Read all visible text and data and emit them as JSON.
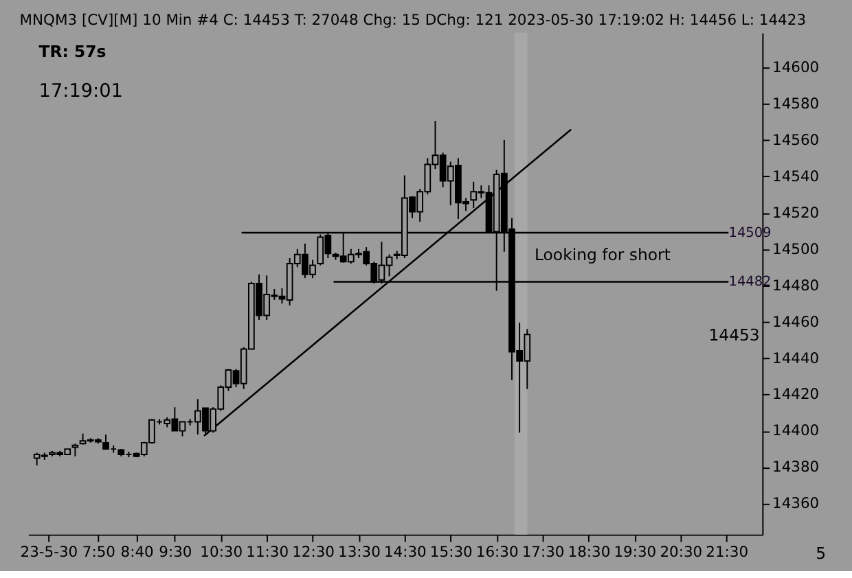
{
  "chart_data": {
    "type": "candlestick",
    "title": "MNQM3 [CV][M]  10 Min  #4  C: 14453  T: 27048  Chg: 15  DChg: 121  2023-05-30 17:19:02  H: 14456  L: 14423",
    "x": [
      6.5,
      6.6667,
      6.8333,
      7.0,
      7.1667,
      7.3333,
      7.5,
      7.6667,
      7.8333,
      8.0,
      8.1667,
      8.3333,
      8.5,
      8.6667,
      8.8333,
      9.0,
      9.1667,
      9.3333,
      9.5,
      9.6667,
      9.8333,
      10.0,
      10.1667,
      10.3333,
      10.5,
      10.6667,
      10.8333,
      11.0,
      11.1667,
      11.3333,
      11.5,
      11.6667,
      11.8333,
      12.0,
      12.1667,
      12.3333,
      12.5,
      12.6667,
      12.8333,
      13.0,
      13.1667,
      13.3333,
      13.5,
      13.6667,
      13.8333,
      14.0,
      14.1667,
      14.3333,
      14.5,
      14.6667,
      14.8333,
      15.0,
      15.1667,
      15.3333,
      15.5,
      15.6667,
      15.8333,
      16.0,
      16.1667,
      16.3333,
      16.5,
      16.6667,
      16.8333,
      17.0,
      17.1667
    ],
    "ohlc": [
      [
        14385,
        14388,
        14381,
        14387
      ],
      [
        14386,
        14388,
        14384,
        14386.5
      ],
      [
        14387,
        14389,
        14386,
        14388
      ],
      [
        14388,
        14389,
        14386,
        14387
      ],
      [
        14387,
        14390,
        14387,
        14390
      ],
      [
        14391,
        14393,
        14386,
        14392
      ],
      [
        14393,
        14398.5,
        14392.5,
        14394.5
      ],
      [
        14394.5,
        14396,
        14393.5,
        14395
      ],
      [
        14395,
        14396,
        14393,
        14394
      ],
      [
        14393.5,
        14398,
        14390,
        14390
      ],
      [
        14390,
        14392,
        14388,
        14390
      ],
      [
        14389.5,
        14390,
        14386,
        14387
      ],
      [
        14387,
        14388.5,
        14385.5,
        14387
      ],
      [
        14387.5,
        14388,
        14385.5,
        14386
      ],
      [
        14387,
        14394,
        14386,
        14393.5
      ],
      [
        14393.5,
        14406.5,
        14393,
        14406
      ],
      [
        14405,
        14406.5,
        14403.5,
        14405
      ],
      [
        14404,
        14407.5,
        14402,
        14406
      ],
      [
        14406.5,
        14413,
        14400,
        14400
      ],
      [
        14400,
        14405,
        14397,
        14405
      ],
      [
        14405,
        14406.5,
        14403,
        14405
      ],
      [
        14405,
        14417.5,
        14398,
        14411
      ],
      [
        14412.5,
        14412.5,
        14398.5,
        14400
      ],
      [
        14400,
        14413,
        14399,
        14412
      ],
      [
        14412,
        14425,
        14411,
        14424
      ],
      [
        14424,
        14434,
        14422,
        14433.5
      ],
      [
        14433,
        14434,
        14424,
        14426
      ],
      [
        14426,
        14446,
        14423,
        14445
      ],
      [
        14445,
        14482,
        14445,
        14481
      ],
      [
        14481,
        14486,
        14461,
        14463.5
      ],
      [
        14463.5,
        14485.5,
        14461,
        14475
      ],
      [
        14474.5,
        14478,
        14472,
        14474
      ],
      [
        14474,
        14478.5,
        14470,
        14472.5
      ],
      [
        14472,
        14495,
        14469,
        14492
      ],
      [
        14492,
        14500,
        14490,
        14497
      ],
      [
        14497,
        14503,
        14484,
        14486
      ],
      [
        14486,
        14494,
        14484,
        14491
      ],
      [
        14492,
        14508,
        14491,
        14506.5
      ],
      [
        14507.5,
        14509,
        14495,
        14497.5
      ],
      [
        14497,
        14498,
        14494,
        14496
      ],
      [
        14496,
        14509,
        14492.5,
        14493
      ],
      [
        14493,
        14500,
        14492,
        14497
      ],
      [
        14497.5,
        14500,
        14495,
        14497
      ],
      [
        14498.5,
        14501,
        14491,
        14492
      ],
      [
        14492,
        14493,
        14481,
        14482
      ],
      [
        14483,
        14504,
        14481,
        14491
      ],
      [
        14491,
        14497,
        14485,
        14495.5
      ],
      [
        14496.5,
        14499,
        14494.5,
        14497
      ],
      [
        14496.5,
        14540.5,
        14495,
        14528
      ],
      [
        14528.5,
        14529,
        14517,
        14520.5
      ],
      [
        14520.5,
        14533,
        14515,
        14531.5
      ],
      [
        14531.5,
        14550,
        14530,
        14546.5
      ],
      [
        14546.5,
        14570.5,
        14544,
        14551.5
      ],
      [
        14551.5,
        14553,
        14534,
        14537.5
      ],
      [
        14537.5,
        14548,
        14524,
        14545.5
      ],
      [
        14546,
        14550,
        14516.5,
        14525.5
      ],
      [
        14526,
        14528,
        14521,
        14525
      ],
      [
        14527,
        14537,
        14522.5,
        14531.5
      ],
      [
        14531.5,
        14535,
        14528,
        14531
      ],
      [
        14531,
        14535,
        14509,
        14509.7
      ],
      [
        14509.5,
        14543.5,
        14477,
        14541
      ],
      [
        14541.5,
        14560,
        14498.5,
        14509.5
      ],
      [
        14511,
        14517,
        14428,
        14443.5
      ],
      [
        14444,
        14459.5,
        14399,
        14438.5
      ],
      [
        14438.5,
        14456,
        14423,
        14453
      ]
    ],
    "color": "#000000",
    "series": [
      {
        "type": "line",
        "color": "#000000",
        "x": [
          10.15,
          18.11
        ],
        "values": [
          14397.5,
          14565.5
        ]
      },
      {
        "type": "line",
        "color": "#000000",
        "x": [
          10.97,
          21.53
        ],
        "values": [
          14509,
          14509
        ]
      },
      {
        "type": "line",
        "color": "#000000",
        "x": [
          12.97,
          21.53
        ],
        "values": [
          14482,
          14482
        ]
      }
    ],
    "bands": [
      {
        "axis": "x",
        "from": 16.89,
        "to": 17.17,
        "color": "#a8a8a8"
      }
    ],
    "annotations": [
      "TR: 57s",
      "17:19:01",
      "5",
      "Looking for short",
      {
        "text": "14509",
        "x": 21.55,
        "y": 14509
      },
      {
        "text": "14482",
        "x": 21.55,
        "y": 14482
      },
      "14453"
    ],
    "xlim": [
      6.31,
      22.28
    ],
    "xticks": [
      {
        "value": 6.75,
        "label": "23-5-30"
      },
      {
        "value": 7.8333,
        "label": "7:50"
      },
      {
        "value": 8.6667,
        "label": "8:40"
      },
      {
        "value": 9.5,
        "label": "9:30"
      },
      {
        "value": 10.5,
        "label": "10:30"
      },
      {
        "value": 11.5,
        "label": "11:30"
      },
      {
        "value": 12.5,
        "label": "12:30"
      },
      {
        "value": 13.5,
        "label": "13:30"
      },
      {
        "value": 14.5,
        "label": "14:30"
      },
      {
        "value": 15.5,
        "label": "15:30"
      },
      {
        "value": 16.5,
        "label": "16:30"
      },
      {
        "value": 17.5,
        "label": "17:30"
      },
      {
        "value": 18.5,
        "label": "18:30"
      },
      {
        "value": 19.5,
        "label": "19:30"
      },
      {
        "value": 20.5,
        "label": "20:30"
      },
      {
        "value": 21.5,
        "label": "21:30"
      }
    ],
    "ylim": [
      14343,
      14619
    ],
    "yticks": [
      14360,
      14380,
      14400,
      14420,
      14440,
      14460,
      14480,
      14500,
      14520,
      14540,
      14560,
      14580,
      14600
    ],
    "grid": false
  }
}
